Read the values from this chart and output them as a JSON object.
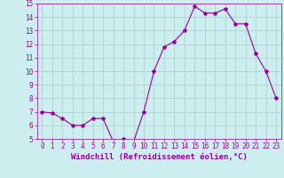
{
  "x": [
    0,
    1,
    2,
    3,
    4,
    5,
    6,
    7,
    8,
    9,
    10,
    11,
    12,
    13,
    14,
    15,
    16,
    17,
    18,
    19,
    20,
    21,
    22,
    23
  ],
  "y": [
    7.0,
    6.9,
    6.5,
    6.0,
    6.0,
    6.5,
    6.5,
    4.8,
    5.0,
    4.8,
    7.0,
    10.0,
    11.8,
    12.2,
    13.0,
    14.8,
    14.3,
    14.3,
    14.6,
    13.5,
    13.5,
    11.3,
    10.0,
    8.0
  ],
  "line_color": "#990099",
  "marker": "*",
  "marker_size": 3,
  "line_width": 0.8,
  "bg_color": "#cceeee",
  "grid_color": "#aacccc",
  "xlabel": "Windchill (Refroidissement éolien,°C)",
  "xlabel_color": "#990099",
  "tick_color": "#990099",
  "ylim": [
    5,
    15
  ],
  "xlim": [
    -0.5,
    23.5
  ],
  "yticks": [
    5,
    6,
    7,
    8,
    9,
    10,
    11,
    12,
    13,
    14,
    15
  ],
  "xticks": [
    0,
    1,
    2,
    3,
    4,
    5,
    6,
    7,
    8,
    9,
    10,
    11,
    12,
    13,
    14,
    15,
    16,
    17,
    18,
    19,
    20,
    21,
    22,
    23
  ],
  "tick_fontsize": 5.5,
  "xlabel_fontsize": 6.5
}
